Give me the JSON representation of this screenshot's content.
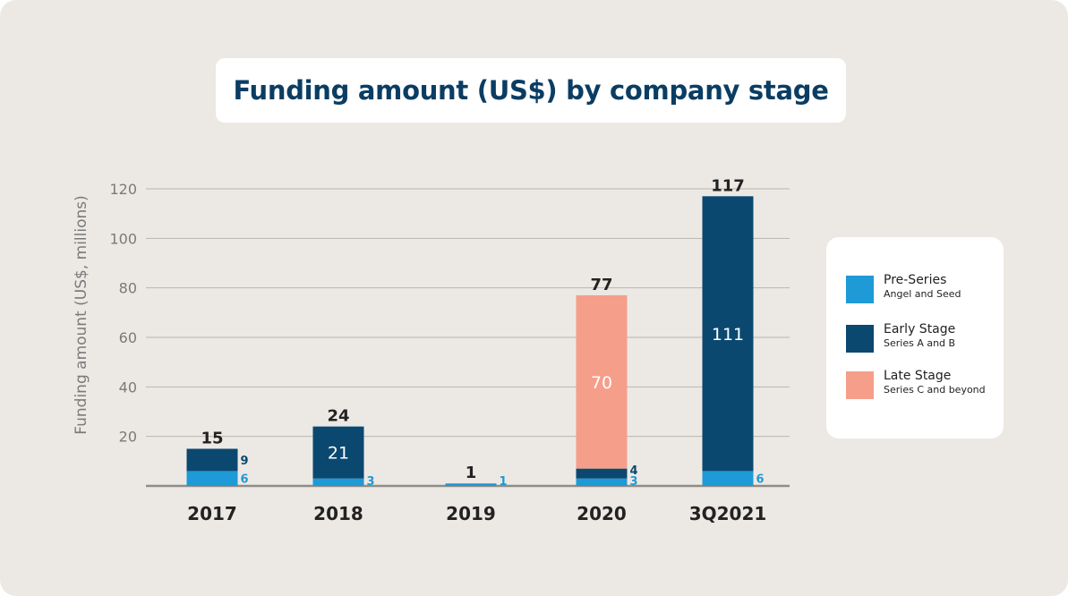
{
  "title": "Funding amount (US$) by company stage",
  "colors": {
    "pre_series": "#1e9ad6",
    "early_stage": "#0b4870",
    "late_stage": "#f59e8a",
    "background": "#ece9e4",
    "title": "#0b3d63"
  },
  "legend": [
    {
      "name": "Pre-Series",
      "sub": "Angel and Seed"
    },
    {
      "name": "Early Stage",
      "sub": "Series A and B"
    },
    {
      "name": "Late Stage",
      "sub": "Series C and beyond"
    }
  ],
  "chart_data": {
    "type": "bar",
    "stacked": true,
    "title": "Funding amount (US$) by company stage",
    "xlabel": "",
    "ylabel": "Funding amount (US$, millions)",
    "ylim": [
      0,
      120
    ],
    "yticks": [
      20,
      40,
      60,
      80,
      100,
      120
    ],
    "grid": true,
    "legend_position": "right",
    "categories": [
      "2017",
      "2018",
      "2019",
      "2020",
      "3Q2021"
    ],
    "series": [
      {
        "name": "Pre-Series",
        "values": [
          6,
          3,
          1,
          3,
          6
        ]
      },
      {
        "name": "Early Stage",
        "values": [
          9,
          21,
          0,
          4,
          111
        ]
      },
      {
        "name": "Late Stage",
        "values": [
          0,
          0,
          0,
          70,
          0
        ]
      }
    ],
    "totals": [
      15,
      24,
      1,
      77,
      117
    ]
  }
}
